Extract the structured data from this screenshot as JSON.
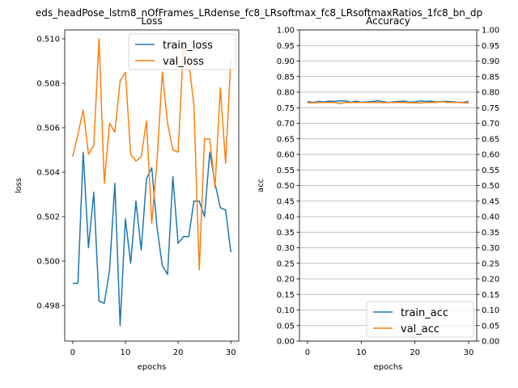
{
  "figure": {
    "suptitle": "eds_headPose_lstm8_nOfFrames_LRdense_fc8_LRsoftmax_fc8_LRsoftmaxRatios_1fc8_bn_dp"
  },
  "chart_data": [
    {
      "type": "line",
      "title": "Loss",
      "xlabel": "epochs",
      "ylabel": "loss",
      "xlim": [
        -1.5,
        31.5
      ],
      "ylim": [
        0.4964,
        0.5104
      ],
      "xticks": [
        0,
        10,
        20,
        30
      ],
      "yticks": [
        0.498,
        0.5,
        0.502,
        0.504,
        0.506,
        0.508,
        0.51
      ],
      "ytick_labels": [
        "0.498",
        "0.500",
        "0.502",
        "0.504",
        "0.506",
        "0.508",
        "0.510"
      ],
      "grid": false,
      "legend": "top-right",
      "x": [
        0,
        1,
        2,
        3,
        4,
        5,
        6,
        7,
        8,
        9,
        10,
        11,
        12,
        13,
        14,
        15,
        16,
        17,
        18,
        19,
        20,
        21,
        22,
        23,
        24,
        25,
        26,
        27,
        28,
        29,
        30
      ],
      "series": [
        {
          "name": "train_loss",
          "color": "#1f77b4",
          "values": [
            0.499,
            0.499,
            0.5049,
            0.5006,
            0.5031,
            0.4982,
            0.4981,
            0.4996,
            0.5035,
            0.4971,
            0.5019,
            0.4999,
            0.5027,
            0.5005,
            0.5037,
            0.5042,
            0.5015,
            0.4998,
            0.4994,
            0.5038,
            0.5008,
            0.5011,
            0.5011,
            0.5027,
            0.5027,
            0.502,
            0.5049,
            0.5035,
            0.5024,
            0.5023,
            0.5004
          ]
        },
        {
          "name": "val_loss",
          "color": "#ff7f0e",
          "values": [
            0.5047,
            0.5057,
            0.5068,
            0.5048,
            0.5052,
            0.51,
            0.5035,
            0.5062,
            0.5058,
            0.5081,
            0.5085,
            0.5048,
            0.5045,
            0.5047,
            0.5063,
            0.5017,
            0.5045,
            0.5085,
            0.5062,
            0.505,
            0.5049,
            0.5097,
            0.509,
            0.507,
            0.4996,
            0.5055,
            0.5055,
            0.5033,
            0.5078,
            0.5044,
            0.5091
          ]
        }
      ]
    },
    {
      "type": "line",
      "title": "Accuracy",
      "xlabel": "epochs",
      "ylabel": "acc",
      "xlim": [
        -1.5,
        31.5
      ],
      "ylim": [
        0.0,
        1.0
      ],
      "xticks": [
        0,
        10,
        20,
        30
      ],
      "yticks": [
        0.0,
        0.05,
        0.1,
        0.15,
        0.2,
        0.25,
        0.3,
        0.35,
        0.4,
        0.45,
        0.5,
        0.55,
        0.6,
        0.65,
        0.7,
        0.75,
        0.8,
        0.85,
        0.9,
        0.95,
        1.0
      ],
      "ytick_labels": [
        "0.00",
        "0.05",
        "0.10",
        "0.15",
        "0.20",
        "0.25",
        "0.30",
        "0.35",
        "0.40",
        "0.45",
        "0.50",
        "0.55",
        "0.60",
        "0.65",
        "0.70",
        "0.75",
        "0.80",
        "0.85",
        "0.90",
        "0.95",
        "1.00"
      ],
      "grid": true,
      "y_ticks_both_sides": true,
      "legend": "bottom-right",
      "x": [
        0,
        1,
        2,
        3,
        4,
        5,
        6,
        7,
        8,
        9,
        10,
        11,
        12,
        13,
        14,
        15,
        16,
        17,
        18,
        19,
        20,
        21,
        22,
        23,
        24,
        25,
        26,
        27,
        28,
        29,
        30
      ],
      "series": [
        {
          "name": "train_acc",
          "color": "#1f77b4",
          "values": [
            0.77,
            0.767,
            0.77,
            0.769,
            0.771,
            0.77,
            0.772,
            0.772,
            0.768,
            0.771,
            0.768,
            0.769,
            0.77,
            0.772,
            0.77,
            0.767,
            0.769,
            0.77,
            0.771,
            0.768,
            0.769,
            0.772,
            0.77,
            0.771,
            0.768,
            0.77,
            0.77,
            0.769,
            0.768,
            0.767,
            0.771
          ]
        },
        {
          "name": "val_acc",
          "color": "#ff7f0e",
          "values": [
            0.766,
            0.766,
            0.767,
            0.767,
            0.767,
            0.767,
            0.763,
            0.767,
            0.767,
            0.767,
            0.767,
            0.767,
            0.767,
            0.767,
            0.766,
            0.767,
            0.767,
            0.767,
            0.767,
            0.766,
            0.766,
            0.765,
            0.767,
            0.767,
            0.767,
            0.77,
            0.767,
            0.767,
            0.767,
            0.766,
            0.765
          ]
        }
      ]
    }
  ]
}
